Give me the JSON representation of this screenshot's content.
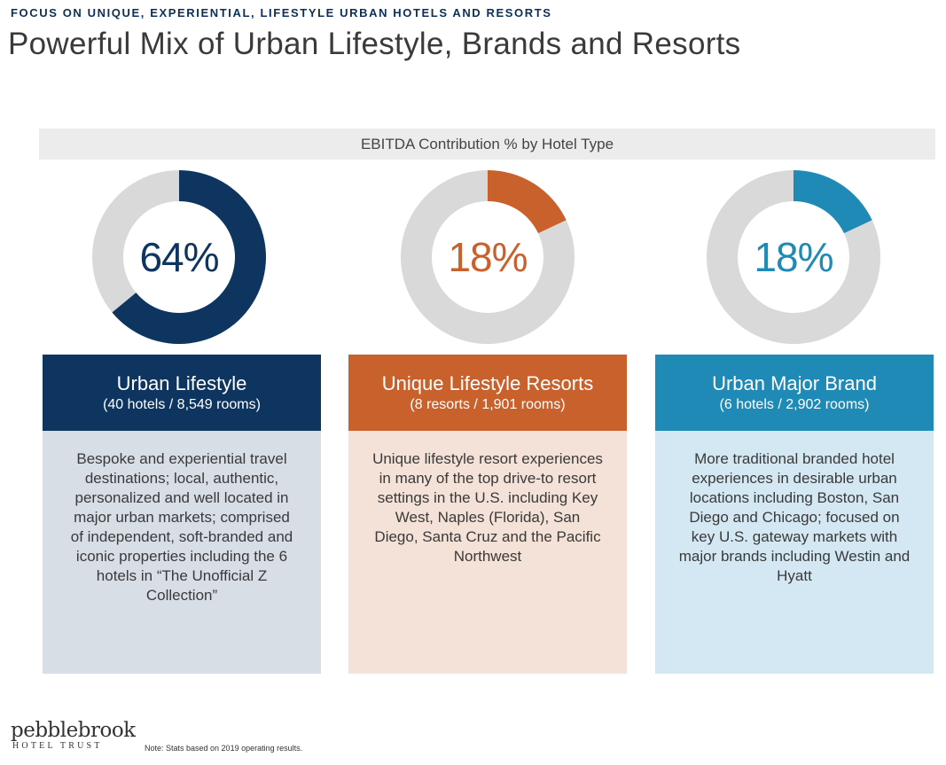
{
  "header": {
    "eyebrow": "FOCUS ON UNIQUE, EXPERIENTIAL, LIFESTYLE URBAN HOTELS AND RESORTS",
    "title": "Powerful Mix of Urban Lifestyle, Brands and Resorts"
  },
  "chart_data": {
    "type": "pie",
    "title": "EBITDA Contribution % by Hotel Type",
    "series": [
      {
        "name": "Urban Lifestyle",
        "value": 64,
        "label": "64%",
        "color": "#0d3560",
        "subtitle": "(40 hotels / 8,549 rooms)",
        "description": "Bespoke and experiential travel destinations; local, authentic, personalized and well located in major urban markets; comprised of independent, soft-branded and iconic properties including the 6 hotels in “The Unofficial Z Collection”",
        "body_bg": "#d8dee6"
      },
      {
        "name": "Unique Lifestyle Resorts",
        "value": 18,
        "label": "18%",
        "color": "#c8612b",
        "subtitle": "(8 resorts / 1,901 rooms)",
        "description": "Unique lifestyle resort experiences in many of the top drive-to resort settings in the U.S. including Key West, Naples (Florida), San Diego, Santa Cruz and the Pacific Northwest",
        "body_bg": "#f4e1d7"
      },
      {
        "name": "Urban Major Brand",
        "value": 18,
        "label": "18%",
        "color": "#1f8ab5",
        "subtitle": "(6 hotels / 2,902 rooms)",
        "description": "More traditional branded hotel experiences in desirable urban locations including Boston, San Diego and Chicago; focused on key U.S. gateway markets with major brands including Westin and Hyatt",
        "body_bg": "#d3e8f3"
      }
    ],
    "remainder_color": "#d9d9d9"
  },
  "footer": {
    "logo_text": "pebblebrook",
    "logo_sub": "HOTEL TRUST",
    "note": "Note: Stats based on 2019 operating results."
  }
}
